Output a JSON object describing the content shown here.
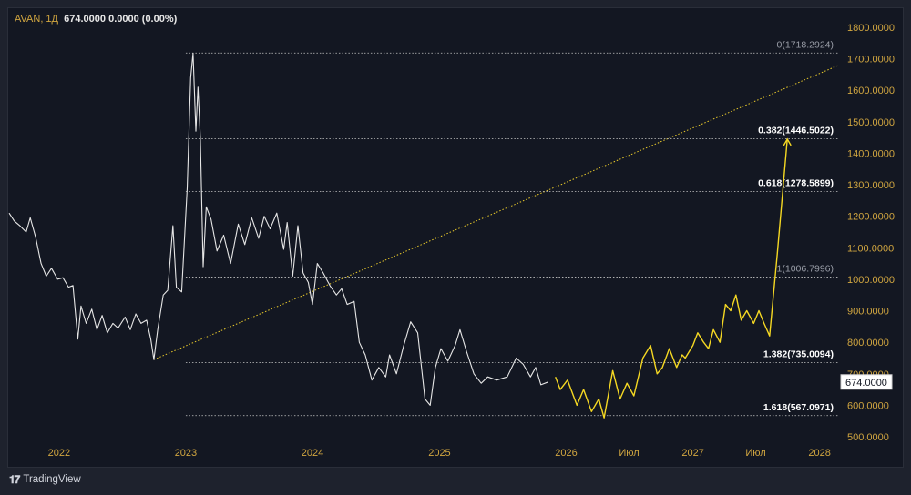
{
  "header": {
    "symbol": "AVAN, 1Д",
    "values": "674.0000  0.0000 (0.00%)"
  },
  "footer": {
    "brand": "TradingView",
    "logo_icon": "tradingview-logo-icon"
  },
  "colors": {
    "background": "#131722",
    "price_line": "#e6e6e6",
    "projection": "#f5d823",
    "trendline": "#e8c92b",
    "axis_text": "#d1a640",
    "fib_line": "#c8c8c8"
  },
  "chart_data": {
    "type": "line",
    "ylim": [
      500,
      1800
    ],
    "x_range": [
      "2021-08-10",
      "2028-02-26"
    ],
    "y_ticks": [
      "1800.0000",
      "1700.0000",
      "1600.0000",
      "1500.0000",
      "1400.0000",
      "1300.0000",
      "1200.0000",
      "1100.0000",
      "1000.0000",
      "900.0000",
      "800.0000",
      "700.0000",
      "600.0000",
      "500.0000"
    ],
    "x_ticks": [
      {
        "label": "2022",
        "date": "2022-01-01"
      },
      {
        "label": "2023",
        "date": "2023-01-01"
      },
      {
        "label": "2024",
        "date": "2024-01-01"
      },
      {
        "label": "2025",
        "date": "2025-01-01"
      },
      {
        "label": "2026",
        "date": "2026-01-01"
      },
      {
        "label": "Июл",
        "date": "2026-07-01"
      },
      {
        "label": "2027",
        "date": "2027-01-01"
      },
      {
        "label": "Июл",
        "date": "2027-07-01"
      },
      {
        "label": "2028",
        "date": "2028-01-01"
      }
    ],
    "last_price": {
      "label": "674.0000",
      "value": 674
    },
    "series": [
      {
        "role": "price",
        "points": [
          [
            "2021-08-10",
            1210
          ],
          [
            "2021-08-25",
            1185
          ],
          [
            "2021-09-10",
            1170
          ],
          [
            "2021-09-28",
            1150
          ],
          [
            "2021-10-10",
            1195
          ],
          [
            "2021-10-25",
            1135
          ],
          [
            "2021-11-10",
            1050
          ],
          [
            "2021-11-25",
            1010
          ],
          [
            "2021-12-10",
            1035
          ],
          [
            "2021-12-28",
            1000
          ],
          [
            "2022-01-12",
            1005
          ],
          [
            "2022-01-28",
            975
          ],
          [
            "2022-02-10",
            980
          ],
          [
            "2022-02-24",
            810
          ],
          [
            "2022-03-05",
            915
          ],
          [
            "2022-03-20",
            860
          ],
          [
            "2022-04-05",
            905
          ],
          [
            "2022-04-20",
            840
          ],
          [
            "2022-05-05",
            885
          ],
          [
            "2022-05-20",
            830
          ],
          [
            "2022-06-05",
            860
          ],
          [
            "2022-06-20",
            845
          ],
          [
            "2022-07-10",
            880
          ],
          [
            "2022-07-25",
            840
          ],
          [
            "2022-08-10",
            890
          ],
          [
            "2022-08-25",
            860
          ],
          [
            "2022-09-10",
            870
          ],
          [
            "2022-09-22",
            810
          ],
          [
            "2022-10-01",
            745
          ],
          [
            "2022-10-12",
            840
          ],
          [
            "2022-10-28",
            950
          ],
          [
            "2022-11-10",
            965
          ],
          [
            "2022-11-25",
            1170
          ],
          [
            "2022-12-05",
            975
          ],
          [
            "2022-12-20",
            960
          ],
          [
            "2023-01-05",
            1290
          ],
          [
            "2023-01-15",
            1640
          ],
          [
            "2023-01-22",
            1718
          ],
          [
            "2023-01-30",
            1470
          ],
          [
            "2023-02-05",
            1610
          ],
          [
            "2023-02-12",
            1450
          ],
          [
            "2023-02-20",
            1040
          ],
          [
            "2023-03-01",
            1230
          ],
          [
            "2023-03-15",
            1190
          ],
          [
            "2023-04-01",
            1090
          ],
          [
            "2023-04-20",
            1140
          ],
          [
            "2023-05-10",
            1050
          ],
          [
            "2023-06-01",
            1175
          ],
          [
            "2023-06-20",
            1110
          ],
          [
            "2023-07-10",
            1195
          ],
          [
            "2023-07-30",
            1130
          ],
          [
            "2023-08-15",
            1200
          ],
          [
            "2023-09-01",
            1160
          ],
          [
            "2023-09-20",
            1210
          ],
          [
            "2023-10-10",
            1095
          ],
          [
            "2023-10-20",
            1180
          ],
          [
            "2023-11-05",
            1010
          ],
          [
            "2023-11-20",
            1170
          ],
          [
            "2023-12-05",
            1020
          ],
          [
            "2023-12-20",
            990
          ],
          [
            "2024-01-01",
            920
          ],
          [
            "2024-01-15",
            1050
          ],
          [
            "2024-02-01",
            1020
          ],
          [
            "2024-02-20",
            980
          ],
          [
            "2024-03-10",
            950
          ],
          [
            "2024-03-25",
            970
          ],
          [
            "2024-04-10",
            920
          ],
          [
            "2024-04-30",
            930
          ],
          [
            "2024-05-15",
            800
          ],
          [
            "2024-06-01",
            760
          ],
          [
            "2024-06-20",
            680
          ],
          [
            "2024-07-10",
            720
          ],
          [
            "2024-07-30",
            690
          ],
          [
            "2024-08-10",
            760
          ],
          [
            "2024-08-30",
            700
          ],
          [
            "2024-09-20",
            790
          ],
          [
            "2024-10-10",
            865
          ],
          [
            "2024-10-30",
            830
          ],
          [
            "2024-11-20",
            620
          ],
          [
            "2024-12-05",
            600
          ],
          [
            "2024-12-20",
            720
          ],
          [
            "2025-01-05",
            780
          ],
          [
            "2025-01-25",
            740
          ],
          [
            "2025-02-15",
            790
          ],
          [
            "2025-03-01",
            840
          ],
          [
            "2025-03-20",
            770
          ],
          [
            "2025-04-10",
            700
          ],
          [
            "2025-05-01",
            670
          ],
          [
            "2025-05-20",
            690
          ],
          [
            "2025-06-15",
            680
          ],
          [
            "2025-07-15",
            690
          ],
          [
            "2025-08-10",
            750
          ],
          [
            "2025-08-30",
            730
          ],
          [
            "2025-09-20",
            690
          ],
          [
            "2025-10-05",
            720
          ],
          [
            "2025-10-20",
            665
          ],
          [
            "2025-11-10",
            674
          ]
        ]
      },
      {
        "role": "projection",
        "points": [
          [
            "2025-12-01",
            690
          ],
          [
            "2025-12-15",
            650
          ],
          [
            "2026-01-05",
            680
          ],
          [
            "2026-02-01",
            600
          ],
          [
            "2026-02-20",
            650
          ],
          [
            "2026-03-15",
            580
          ],
          [
            "2026-04-05",
            620
          ],
          [
            "2026-04-20",
            560
          ],
          [
            "2026-05-15",
            710
          ],
          [
            "2026-06-05",
            620
          ],
          [
            "2026-06-25",
            670
          ],
          [
            "2026-07-15",
            630
          ],
          [
            "2026-08-10",
            750
          ],
          [
            "2026-09-01",
            790
          ],
          [
            "2026-09-20",
            700
          ],
          [
            "2026-10-05",
            720
          ],
          [
            "2026-10-25",
            780
          ],
          [
            "2026-11-15",
            720
          ],
          [
            "2026-12-01",
            760
          ],
          [
            "2026-12-10",
            750
          ],
          [
            "2027-01-01",
            790
          ],
          [
            "2027-01-15",
            830
          ],
          [
            "2027-02-01",
            800
          ],
          [
            "2027-02-15",
            780
          ],
          [
            "2027-03-01",
            840
          ],
          [
            "2027-03-20",
            800
          ],
          [
            "2027-04-05",
            920
          ],
          [
            "2027-04-20",
            900
          ],
          [
            "2027-05-05",
            950
          ],
          [
            "2027-05-20",
            870
          ],
          [
            "2027-06-05",
            900
          ],
          [
            "2027-06-25",
            860
          ],
          [
            "2027-07-10",
            900
          ],
          [
            "2027-07-25",
            860
          ],
          [
            "2027-08-10",
            820
          ],
          [
            "2027-09-01",
            1080
          ],
          [
            "2027-09-30",
            1445
          ]
        ]
      }
    ],
    "trendline": {
      "start": [
        "2022-10-01",
        745
      ],
      "end": [
        "2028-02-26",
        1680
      ]
    },
    "fib_levels": [
      {
        "label": "0(1718.2924)",
        "value": 1718.2924,
        "start": "2023-01-01",
        "bold": false
      },
      {
        "label": "0.382(1446.5022)",
        "value": 1446.5022,
        "start": "2023-01-01",
        "bold": true
      },
      {
        "label": "0.618(1278.5899)",
        "value": 1278.5899,
        "start": "2023-01-01",
        "bold": true
      },
      {
        "label": "1(1006.7996)",
        "value": 1006.7996,
        "start": "2023-01-01",
        "bold": false
      },
      {
        "label": "1.382(735.0094)",
        "value": 735.0094,
        "start": "2023-01-01",
        "bold": true
      },
      {
        "label": "1.618(567.0971)",
        "value": 567.0971,
        "start": "2023-01-01",
        "bold": true
      }
    ]
  }
}
